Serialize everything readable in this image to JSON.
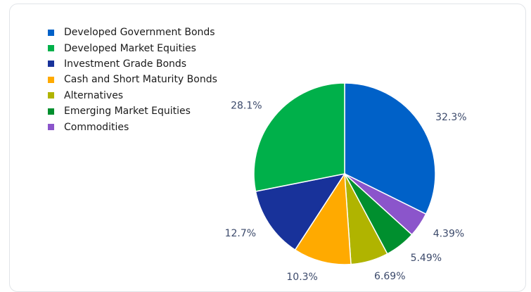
{
  "chart_data": {
    "type": "pie",
    "title": "",
    "legend_position": "top-left",
    "slices": [
      {
        "label": "Developed Government Bonds",
        "value": 32.3,
        "display": "32.3%",
        "color": "#0061c8"
      },
      {
        "label": "Commodities",
        "value": 4.39,
        "display": "4.39%",
        "color": "#8b55cb"
      },
      {
        "label": "Emerging Market Equities",
        "value": 5.49,
        "display": "5.49%",
        "color": "#008f2e"
      },
      {
        "label": "Alternatives",
        "value": 6.69,
        "display": "6.69%",
        "color": "#b0b400"
      },
      {
        "label": "Cash and Short Maturity Bonds",
        "value": 10.3,
        "display": "10.3%",
        "color": "#ffaa00"
      },
      {
        "label": "Investment Grade Bonds",
        "value": 12.7,
        "display": "12.7%",
        "color": "#18329a"
      },
      {
        "label": "Developed Market Equities",
        "value": 28.1,
        "display": "28.1%",
        "color": "#00b04a"
      }
    ],
    "legend": [
      {
        "label": "Developed Government Bonds",
        "color": "#0061c8"
      },
      {
        "label": "Developed Market Equities",
        "color": "#00b04a"
      },
      {
        "label": "Investment Grade Bonds",
        "color": "#18329a"
      },
      {
        "label": "Cash and Short Maturity Bonds",
        "color": "#ffaa00"
      },
      {
        "label": "Alternatives",
        "color": "#b0b400"
      },
      {
        "label": "Emerging Market Equities",
        "color": "#008f2e"
      },
      {
        "label": "Commodities",
        "color": "#8b55cb"
      }
    ]
  }
}
